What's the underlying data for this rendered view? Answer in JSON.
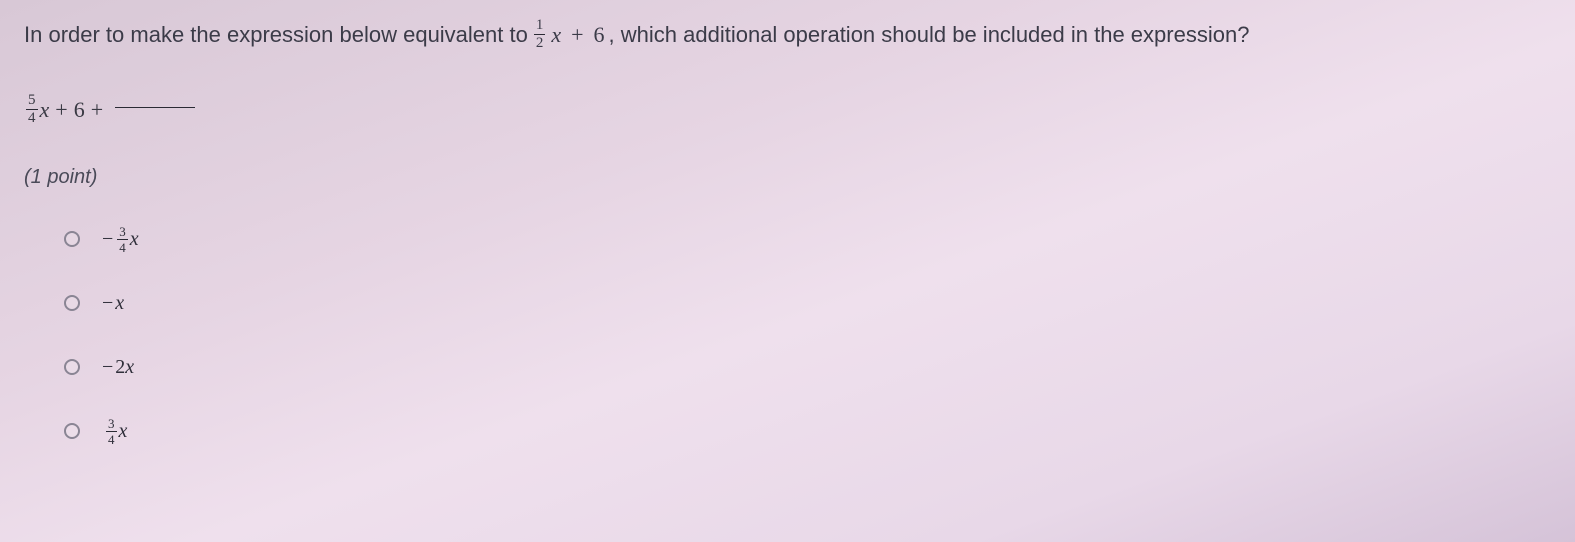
{
  "question": {
    "text_before_fraction": "In order to make the expression below equivalent to ",
    "target_fraction": {
      "num": "1",
      "den": "2"
    },
    "target_var": "x",
    "target_plus": " + ",
    "target_const": "6",
    "text_after": ", which additional operation should be included in the expression?"
  },
  "expression": {
    "lead_fraction": {
      "num": "5",
      "den": "4"
    },
    "var": "x",
    "plus1": " + ",
    "const": "6",
    "plus2": "+"
  },
  "points_label": "(1 point)",
  "options": [
    {
      "type": "frac_term",
      "sign": "−",
      "num": "3",
      "den": "4",
      "var": "x"
    },
    {
      "type": "var_term",
      "sign": "−",
      "var": "x"
    },
    {
      "type": "num_term",
      "sign": "−",
      "coef": "2",
      "var": "x"
    },
    {
      "type": "frac_term",
      "sign": "",
      "num": "3",
      "den": "4",
      "var": "x"
    }
  ],
  "colors": {
    "text": "#3a3a44",
    "radio_border": "#8a8594",
    "rule": "#2a2a34"
  }
}
